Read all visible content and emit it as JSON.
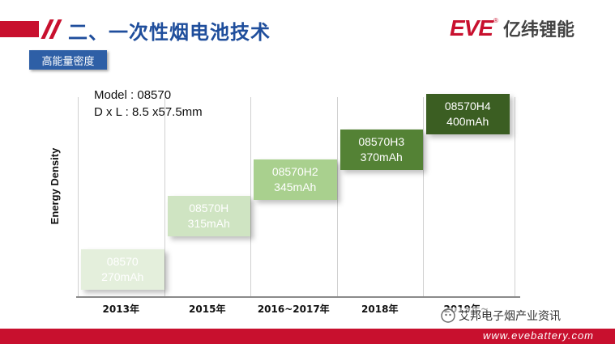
{
  "header": {
    "title": "二、一次性烟电池技术",
    "logo_text": "EVE",
    "logo_cn": "亿纬锂能",
    "logo_reg": "®"
  },
  "badge": {
    "label": "高能量密度"
  },
  "chart_data": {
    "type": "step",
    "ylabel": "Energy Density",
    "model_line1": "Model : 08570",
    "model_line2": "D x L : 8.5 x57.5mm",
    "categories": [
      "2013年",
      "2015年",
      "2016~2017年",
      "2018年",
      "2019年~"
    ],
    "items": [
      {
        "name": "08570",
        "capacity": "270mAh",
        "value": 270,
        "color": "#e4efdc",
        "text_color": "#ffffff"
      },
      {
        "name": "08570H",
        "capacity": "315mAh",
        "value": 315,
        "color": "#cfe4c2",
        "text_color": "#ffffff"
      },
      {
        "name": "08570H2",
        "capacity": "345mAh",
        "value": 345,
        "color": "#a9d08e",
        "text_color": "#ffffff"
      },
      {
        "name": "08570H3",
        "capacity": "370mAh",
        "value": 370,
        "color": "#548235",
        "text_color": "#ffffff"
      },
      {
        "name": "08570H4",
        "capacity": "400mAh",
        "value": 400,
        "color": "#3b5e22",
        "text_color": "#ffffff"
      }
    ]
  },
  "footer": {
    "url": "www.evebattery.com",
    "watermark": "艾邦电子烟产业资讯"
  },
  "colors": {
    "brand_red": "#c8102e",
    "title_blue": "#1f4e9c",
    "badge_blue": "#2e5fa6"
  }
}
